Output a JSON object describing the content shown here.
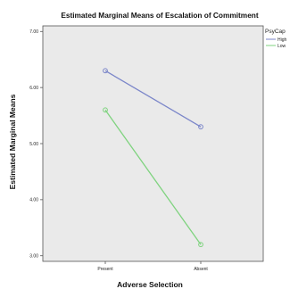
{
  "chart_data": {
    "type": "line",
    "title": "Estimated Marginal Means of Escalation of Commitment",
    "xlabel": "Adverse Selection",
    "ylabel": "Estimated Marginal Means",
    "categories": [
      "Present",
      "Absent"
    ],
    "ylim": [
      2.9,
      7.1
    ],
    "yticks": [
      "3.00",
      "4.00",
      "5.00",
      "6.00",
      "7.00"
    ],
    "grid": false,
    "legend": {
      "title": "PsyCap",
      "position": "right"
    },
    "series": [
      {
        "name": "High",
        "values": [
          6.3,
          5.3
        ],
        "color": "#7b86c9"
      },
      {
        "name": "Low",
        "values": [
          5.6,
          3.2
        ],
        "color": "#7fd37f"
      }
    ]
  },
  "colors": {
    "plot_background": "#eaeaea",
    "axis": "#555555"
  }
}
